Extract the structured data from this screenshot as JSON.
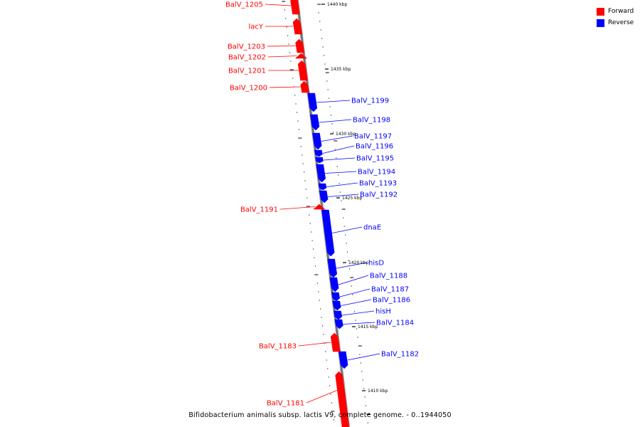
{
  "caption": "Bifidobacterium animalis subsp. lactis V9, complete genome. - 0..1944050",
  "legend": {
    "forward": {
      "label": "Forward",
      "color": "#ff0000"
    },
    "reverse": {
      "label": "Reverse",
      "color": "#0000ff"
    }
  },
  "ruler": {
    "labels": [
      "1440 kbp",
      "1435 kbp",
      "1430 kbp",
      "1425 kbp",
      "1420 kbp",
      "1415 kbp",
      "1410 kbp"
    ]
  },
  "genes": [
    {
      "name": "BalV_1205",
      "strand": "forward"
    },
    {
      "name": "lacY",
      "strand": "forward"
    },
    {
      "name": "BalV_1203",
      "strand": "forward"
    },
    {
      "name": "BalV_1202",
      "strand": "forward"
    },
    {
      "name": "BalV_1201",
      "strand": "forward"
    },
    {
      "name": "BalV_1200",
      "strand": "forward"
    },
    {
      "name": "BalV_1199",
      "strand": "reverse"
    },
    {
      "name": "BalV_1198",
      "strand": "reverse"
    },
    {
      "name": "BalV_1197",
      "strand": "reverse"
    },
    {
      "name": "BalV_1196",
      "strand": "reverse"
    },
    {
      "name": "BalV_1195",
      "strand": "reverse"
    },
    {
      "name": "BalV_1194",
      "strand": "reverse"
    },
    {
      "name": "BalV_1193",
      "strand": "reverse"
    },
    {
      "name": "BalV_1192",
      "strand": "reverse"
    },
    {
      "name": "BalV_1191",
      "strand": "forward"
    },
    {
      "name": "dnaE",
      "strand": "reverse"
    },
    {
      "name": "hisD",
      "strand": "reverse"
    },
    {
      "name": "BalV_1188",
      "strand": "reverse"
    },
    {
      "name": "BalV_1187",
      "strand": "reverse"
    },
    {
      "name": "BalV_1186",
      "strand": "reverse"
    },
    {
      "name": "hisH",
      "strand": "reverse"
    },
    {
      "name": "BalV_1184",
      "strand": "reverse"
    },
    {
      "name": "BalV_1183",
      "strand": "forward"
    },
    {
      "name": "BalV_1182",
      "strand": "reverse"
    },
    {
      "name": "BalV_1181",
      "strand": "forward"
    }
  ]
}
